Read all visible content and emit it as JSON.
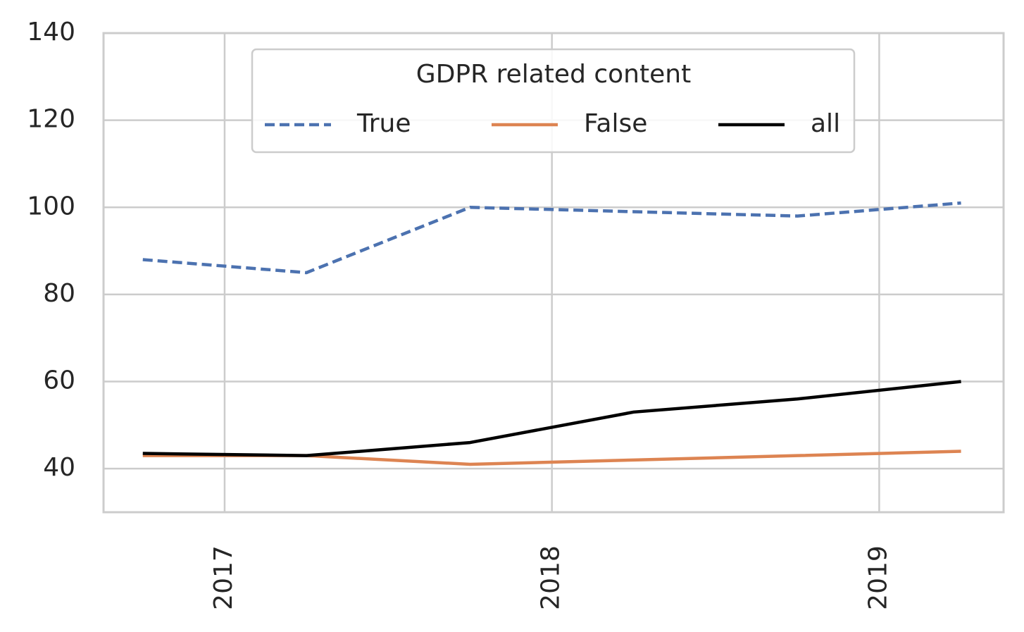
{
  "chart_data": {
    "type": "line",
    "legend_title": "GDPR related content",
    "legend_position": "upper center",
    "x": [
      2016.75,
      2017.25,
      2017.75,
      2018.25,
      2018.75,
      2019.25
    ],
    "series": [
      {
        "name": "True",
        "color": "#4c72b0",
        "linestyle": "dashed",
        "values": [
          88,
          85,
          100,
          99,
          98,
          101
        ]
      },
      {
        "name": "False",
        "color": "#dd8452",
        "linestyle": "solid",
        "values": [
          43,
          43,
          41,
          42,
          43,
          44
        ]
      },
      {
        "name": "all",
        "color": "#000000",
        "linestyle": "solid",
        "values": [
          43.5,
          43,
          46,
          53,
          56,
          60
        ]
      }
    ],
    "xlim": [
      2016.63,
      2019.38
    ],
    "xticks": [
      2017,
      2018,
      2019
    ],
    "ylim": [
      30,
      140
    ],
    "yticks": [
      40,
      60,
      80,
      100,
      120,
      140
    ],
    "grid": true
  }
}
